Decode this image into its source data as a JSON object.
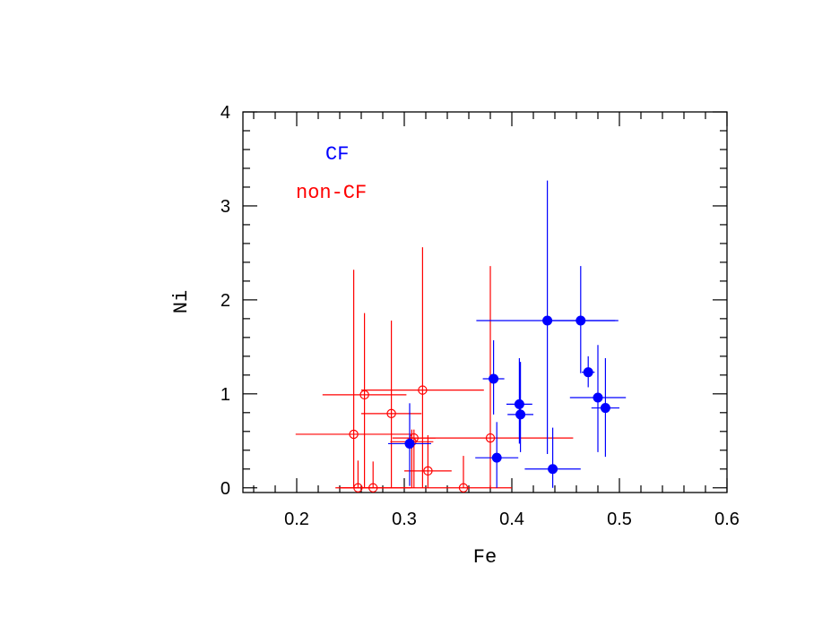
{
  "chart_data": {
    "type": "scatter",
    "xlabel": "Fe",
    "ylabel": "Ni",
    "xlim": [
      0.15,
      0.6
    ],
    "ylim": [
      -0.05,
      4.0
    ],
    "x_major_ticks": [
      0.2,
      0.3,
      0.4,
      0.5,
      0.6
    ],
    "x_tick_labels": [
      "0.2",
      "0.3",
      "0.4",
      "0.5",
      "0.6"
    ],
    "y_major_ticks": [
      0,
      1,
      2,
      3,
      4
    ],
    "y_tick_labels": [
      "0",
      "1",
      "2",
      "3",
      "4"
    ],
    "grid": false,
    "legend_placement": "top-left",
    "series": [
      {
        "name": "CF",
        "color": "#0000ff",
        "marker": "filled-circle",
        "points": [
          {
            "x": 0.305,
            "y": 0.47,
            "xlo": 0.285,
            "xhi": 0.325,
            "ylo": 0.02,
            "yhi": 0.9
          },
          {
            "x": 0.383,
            "y": 1.16,
            "xlo": 0.373,
            "xhi": 0.393,
            "ylo": 0.78,
            "yhi": 1.57
          },
          {
            "x": 0.386,
            "y": 0.32,
            "xlo": 0.366,
            "xhi": 0.406,
            "ylo": 0.0,
            "yhi": 0.7
          },
          {
            "x": 0.407,
            "y": 0.89,
            "xlo": 0.395,
            "xhi": 0.419,
            "ylo": 0.47,
            "yhi": 1.38
          },
          {
            "x": 0.408,
            "y": 0.78,
            "xlo": 0.396,
            "xhi": 0.42,
            "ylo": 0.38,
            "yhi": 1.34
          },
          {
            "x": 0.433,
            "y": 1.78,
            "xlo": 0.367,
            "xhi": 0.499,
            "ylo": 0.36,
            "yhi": 3.27
          },
          {
            "x": 0.438,
            "y": 0.2,
            "xlo": 0.412,
            "xhi": 0.464,
            "ylo": 0.0,
            "yhi": 0.64
          },
          {
            "x": 0.464,
            "y": 1.78,
            "xlo": 0.432,
            "xhi": 0.496,
            "ylo": 1.22,
            "yhi": 2.36
          },
          {
            "x": 0.471,
            "y": 1.23,
            "xlo": 0.465,
            "xhi": 0.477,
            "ylo": 1.07,
            "yhi": 1.4
          },
          {
            "x": 0.48,
            "y": 0.96,
            "xlo": 0.454,
            "xhi": 0.506,
            "ylo": 0.38,
            "yhi": 1.52
          },
          {
            "x": 0.487,
            "y": 0.85,
            "xlo": 0.474,
            "xhi": 0.5,
            "ylo": 0.33,
            "yhi": 1.38
          }
        ]
      },
      {
        "name": "non-CF",
        "color": "#ff0000",
        "marker": "open-circle",
        "points": [
          {
            "x": 0.253,
            "y": 0.57,
            "xlo": 0.199,
            "xhi": 0.307,
            "ylo": 0.0,
            "yhi": 2.32
          },
          {
            "x": 0.257,
            "y": 0.0,
            "xlo": 0.242,
            "xhi": 0.272,
            "ylo": 0.0,
            "yhi": 0.29
          },
          {
            "x": 0.263,
            "y": 0.99,
            "xlo": 0.224,
            "xhi": 0.302,
            "ylo": 0.0,
            "yhi": 1.86
          },
          {
            "x": 0.271,
            "y": 0.0,
            "xlo": 0.236,
            "xhi": 0.306,
            "ylo": 0.0,
            "yhi": 0.28
          },
          {
            "x": 0.288,
            "y": 0.79,
            "xlo": 0.26,
            "xhi": 0.316,
            "ylo": 0.0,
            "yhi": 1.78
          },
          {
            "x": 0.307,
            "y": 0.49,
            "xlo": 0.287,
            "xhi": 0.327,
            "ylo": 0.0,
            "yhi": 0.62
          },
          {
            "x": 0.309,
            "y": 0.53,
            "xlo": 0.289,
            "xhi": 0.329,
            "ylo": 0.0,
            "yhi": 0.62
          },
          {
            "x": 0.317,
            "y": 1.04,
            "xlo": 0.26,
            "xhi": 0.374,
            "ylo": 0.0,
            "yhi": 2.56
          },
          {
            "x": 0.322,
            "y": 0.18,
            "xlo": 0.3,
            "xhi": 0.344,
            "ylo": 0.0,
            "yhi": 0.56
          },
          {
            "x": 0.355,
            "y": 0.0,
            "xlo": 0.24,
            "xhi": 0.4,
            "ylo": 0.0,
            "yhi": 0.34
          },
          {
            "x": 0.38,
            "y": 0.53,
            "xlo": 0.303,
            "xhi": 0.457,
            "ylo": 0.0,
            "yhi": 2.36
          }
        ]
      }
    ]
  }
}
